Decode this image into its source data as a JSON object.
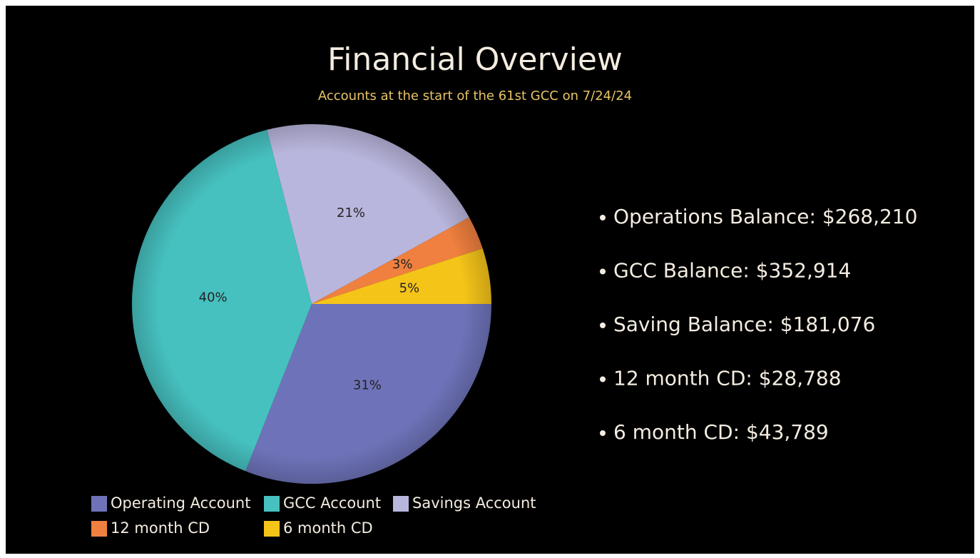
{
  "chart_data": {
    "type": "pie",
    "title": "Financial Overview",
    "subtitle": "Accounts at the start of the 61st GCC on 7/24/24",
    "categories": [
      "Operating Account",
      "GCC Account",
      "Savings Account",
      "12 month CD",
      "6 month CD"
    ],
    "values": [
      31,
      40,
      21,
      3,
      5
    ],
    "value_labels": [
      "31%",
      "40%",
      "21%",
      "3%",
      "5%"
    ],
    "colors": [
      "#6e73b9",
      "#46c1c0",
      "#b9b6dd",
      "#f0803f",
      "#f5c419"
    ],
    "legend": "bottom"
  },
  "notes": [
    "Operations Balance:  $268,210",
    "GCC Balance: $352,914",
    "Saving Balance: $181,076",
    "12 month CD: $28,788",
    "6 month CD:  $43,789"
  ]
}
